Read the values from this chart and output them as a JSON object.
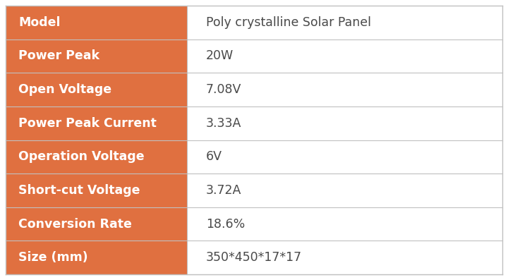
{
  "rows": [
    {
      "label": "Model",
      "value": "Poly crystalline Solar Panel"
    },
    {
      "label": "Power Peak",
      "value": "20W"
    },
    {
      "label": "Open Voltage",
      "value": "7.08V"
    },
    {
      "label": "Power Peak Current",
      "value": "3.33A"
    },
    {
      "label": "Operation Voltage",
      "value": "6V"
    },
    {
      "label": "Short-cut Voltage",
      "value": "3.72A"
    },
    {
      "label": "Conversion Rate",
      "value": "18.6%"
    },
    {
      "label": "Size (mm)",
      "value": "350*450*17*17"
    }
  ],
  "orange_color": "#E07040",
  "white_color": "#FFFFFF",
  "label_text_color": "#FFFFFF",
  "value_text_color": "#4A4A4A",
  "border_color": "#C0C0C0",
  "bg_color": "#FFFFFF",
  "col_split": 0.365,
  "label_fontsize": 12.5,
  "value_fontsize": 12.5
}
